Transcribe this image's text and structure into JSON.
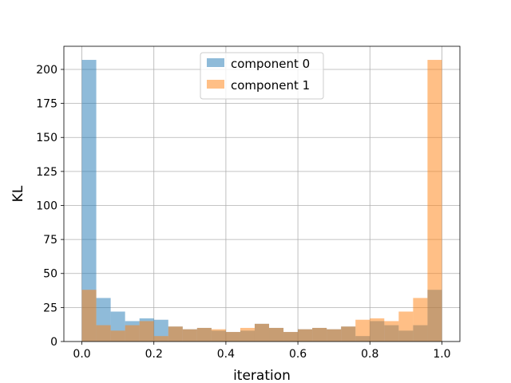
{
  "chart_data": {
    "type": "bar",
    "subtype": "overlaid-histogram",
    "title": "",
    "xlabel": "iteration",
    "ylabel": "KL",
    "xlim": [
      -0.05,
      1.05
    ],
    "ylim": [
      0,
      217
    ],
    "xticks": [
      0.0,
      0.2,
      0.4,
      0.6,
      0.8,
      1.0
    ],
    "xtick_labels": [
      "0.0",
      "0.2",
      "0.4",
      "0.6",
      "0.8",
      "1.0"
    ],
    "yticks": [
      0,
      25,
      50,
      75,
      100,
      125,
      150,
      175,
      200
    ],
    "ytick_labels": [
      "0",
      "25",
      "50",
      "75",
      "100",
      "125",
      "150",
      "175",
      "200"
    ],
    "grid": true,
    "legend_position": "top-center",
    "bin_edges": [
      0.0,
      0.04,
      0.08,
      0.12,
      0.16,
      0.2,
      0.24,
      0.28,
      0.32,
      0.36,
      0.4,
      0.44,
      0.48,
      0.52,
      0.56,
      0.6,
      0.64,
      0.68,
      0.72,
      0.76,
      0.8,
      0.84,
      0.88,
      0.92,
      0.96,
      1.0
    ],
    "series": [
      {
        "name": "component 0",
        "color": "#1f77b4",
        "alpha": 0.5,
        "values": [
          207,
          32,
          22,
          15,
          17,
          16,
          11,
          9,
          10,
          8,
          7,
          8,
          13,
          10,
          7,
          9,
          10,
          9,
          11,
          4,
          15,
          12,
          8,
          12,
          38
        ]
      },
      {
        "name": "component 1",
        "color": "#ff7f0e",
        "alpha": 0.5,
        "values": [
          38,
          12,
          8,
          12,
          15,
          4,
          11,
          9,
          10,
          9,
          7,
          10,
          13,
          10,
          7,
          9,
          10,
          9,
          11,
          16,
          17,
          15,
          22,
          32,
          207
        ]
      }
    ]
  }
}
